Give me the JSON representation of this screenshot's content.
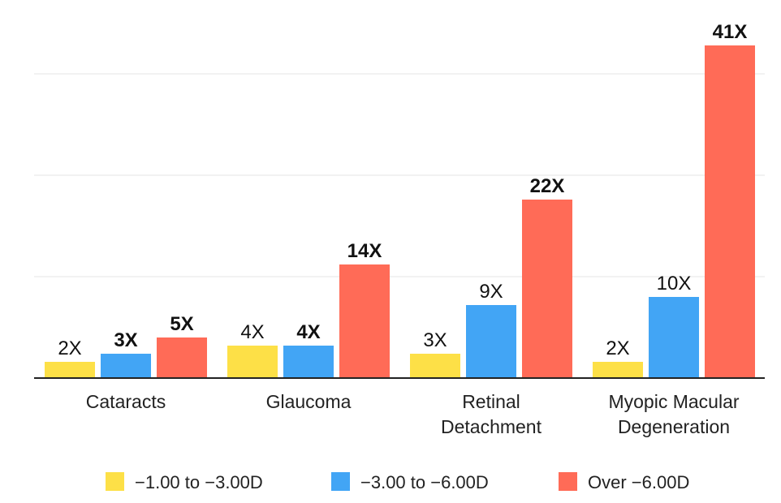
{
  "chart_data": {
    "type": "bar",
    "categories": [
      [
        "Cataracts"
      ],
      [
        "Glaucoma"
      ],
      [
        "Retinal",
        "Detachment"
      ],
      [
        "Myopic Macular",
        "Degeneration"
      ]
    ],
    "series": [
      {
        "name": "−1.00 to −3.00D",
        "color": "#fde047",
        "values": [
          2,
          4,
          3,
          2
        ],
        "labels": [
          "2X",
          "4X",
          "3X",
          "2X"
        ],
        "label_weights": [
          "normal",
          "normal",
          "normal",
          "normal"
        ]
      },
      {
        "name": "−3.00 to −6.00D",
        "color": "#42a5f5",
        "values": [
          3,
          4,
          9,
          10
        ],
        "labels": [
          "3X",
          "4X",
          "9X",
          "10X"
        ],
        "label_weights": [
          "bold",
          "bold",
          "normal",
          "normal"
        ]
      },
      {
        "name": "Over −6.00D",
        "color": "#ff6b57",
        "values": [
          5,
          14,
          22,
          41
        ],
        "labels": [
          "5X",
          "14X",
          "22X",
          "41X"
        ],
        "label_weights": [
          "bold",
          "bold",
          "bold",
          "bold"
        ]
      }
    ],
    "ylim": [
      0,
      42
    ],
    "grid": true,
    "legend_position": "bottom"
  }
}
